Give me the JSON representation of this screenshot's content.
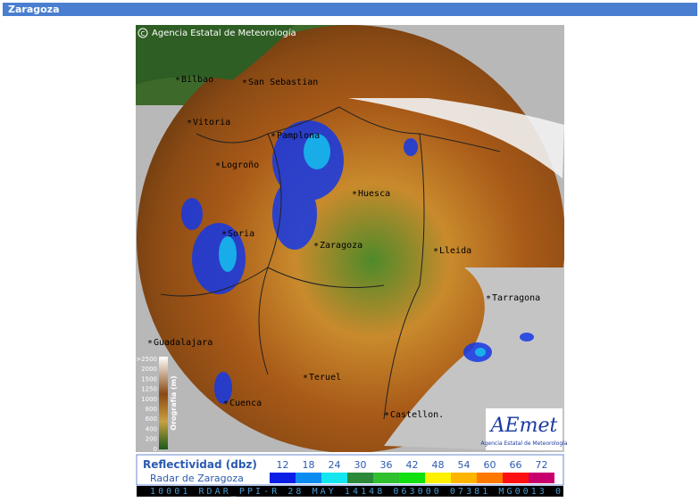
{
  "header": {
    "title": "Zaragoza"
  },
  "map": {
    "copyright": "Agencia Estatal de Meteorología",
    "cities": [
      "Bilbao",
      "San Sebastian",
      "Vitoria",
      "Pamplona",
      "Logroño",
      "Soria",
      "Huesca",
      "Zaragoza",
      "Lleida",
      "Tarragona",
      "Guadalajara",
      "Teruel",
      "Cuenca",
      "Castellon."
    ],
    "orography": {
      "title": "Orografía (m)",
      "levels": [
        ">2500",
        "2000",
        "1500",
        "1250",
        "1000",
        "800",
        "600",
        "400",
        "200",
        "0"
      ]
    },
    "logo": {
      "name": "AEmet",
      "subtitle": "Agencia Estatal de Meteorología"
    }
  },
  "legend": {
    "title": "Reflectividad (dbz)",
    "subtitle": "Radar de Zaragoza",
    "items": [
      {
        "label": "12",
        "color": "#0a1ee6"
      },
      {
        "label": "18",
        "color": "#0a8cf0"
      },
      {
        "label": "24",
        "color": "#14e6f0"
      },
      {
        "label": "30",
        "color": "#2a8a3a"
      },
      {
        "label": "36",
        "color": "#2fbf2f"
      },
      {
        "label": "42",
        "color": "#10e010"
      },
      {
        "label": "48",
        "color": "#fff000"
      },
      {
        "label": "54",
        "color": "#ffb400"
      },
      {
        "label": "60",
        "color": "#ff7800"
      },
      {
        "label": "66",
        "color": "#ff1010"
      },
      {
        "label": "72",
        "color": "#c8006e"
      }
    ]
  },
  "ticker": {
    "text": "10001 RDAR_PPI-R   28 MAY 14148 063000 07381 MG0013 0"
  }
}
